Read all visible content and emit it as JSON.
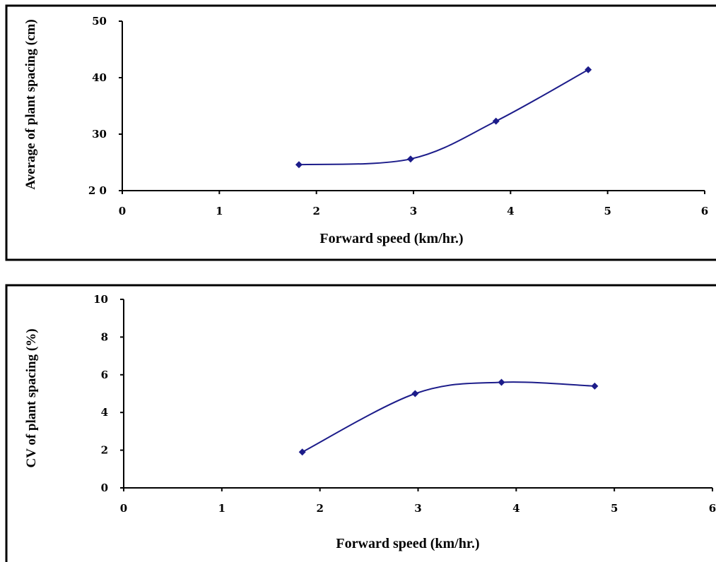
{
  "colors": {
    "series": "#1c1c8a",
    "axis": "#000000"
  },
  "chart_data": [
    {
      "type": "line",
      "smooth": true,
      "marker": "diamond",
      "xlabel": "Forward speed (km/hr.)",
      "ylabel": "Average of plant spacing (cm)",
      "xlim": [
        0,
        6
      ],
      "ylim": [
        20,
        50
      ],
      "xticks": [
        0,
        1,
        2,
        3,
        4,
        5,
        6
      ],
      "yticks": [
        20,
        30,
        40,
        50
      ],
      "ytick_labels": [
        "2 0",
        "30",
        "40",
        "50"
      ],
      "grid": false,
      "legend": "none",
      "series": [
        {
          "x": [
            1.82,
            2.97,
            3.85,
            4.8
          ],
          "y": [
            24.6,
            25.6,
            32.3,
            41.4
          ]
        }
      ]
    },
    {
      "type": "line",
      "smooth": true,
      "marker": "diamond",
      "xlabel": "Forward speed (km/hr.)",
      "ylabel": "CV of plant spacing (%)",
      "xlim": [
        0,
        6
      ],
      "ylim": [
        0,
        10
      ],
      "xticks": [
        0,
        1,
        2,
        3,
        4,
        5,
        6
      ],
      "yticks": [
        0,
        2,
        4,
        6,
        8,
        10
      ],
      "ytick_labels": [
        "0",
        "2",
        "4",
        "6",
        "8",
        "10"
      ],
      "grid": false,
      "legend": "none",
      "series": [
        {
          "x": [
            1.82,
            2.97,
            3.85,
            4.8
          ],
          "y": [
            1.9,
            5.0,
            5.6,
            5.4
          ]
        }
      ]
    }
  ]
}
